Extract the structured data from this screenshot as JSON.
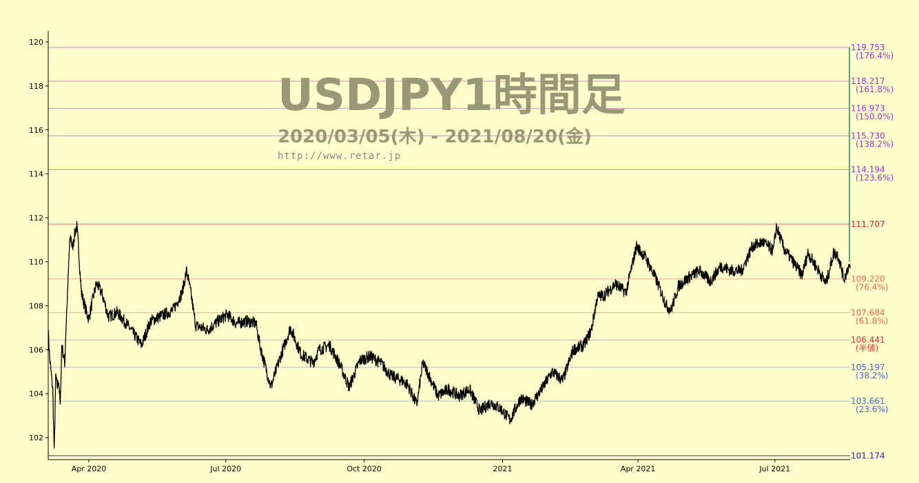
{
  "chart_data": {
    "type": "line",
    "title": "USDJPY1時間足",
    "subtitle": "2020/03/05(木) - 2021/08/20(金)",
    "url_text": "http://www.retar.jp",
    "xlabel": "",
    "ylabel": "",
    "ylim": [
      101.0,
      120.5
    ],
    "xlim": [
      "2020-03-05",
      "2021-08-20"
    ],
    "y_ticks": [
      102,
      104,
      106,
      108,
      110,
      112,
      114,
      116,
      118,
      120
    ],
    "x_ticks": [
      {
        "label": "Apr 2020",
        "date": "2020-04-01"
      },
      {
        "label": "Jul 2020",
        "date": "2020-07-01"
      },
      {
        "label": "Oct 2020",
        "date": "2020-10-01"
      },
      {
        "label": "2021",
        "date": "2021-01-01"
      },
      {
        "label": "Apr 2021",
        "date": "2021-04-01"
      },
      {
        "label": "Jul 2021",
        "date": "2021-07-01"
      }
    ],
    "series": [
      {
        "color": "#000000",
        "points": [
          [
            "2020-03-05",
            106.9
          ],
          [
            "2020-03-06",
            105.6
          ],
          [
            "2020-03-08",
            104.2
          ],
          [
            "2020-03-09",
            101.3
          ],
          [
            "2020-03-10",
            104.8
          ],
          [
            "2020-03-11",
            104.3
          ],
          [
            "2020-03-12",
            104.6
          ],
          [
            "2020-03-13",
            103.4
          ],
          [
            "2020-03-14",
            106.2
          ],
          [
            "2020-03-16",
            105.4
          ],
          [
            "2020-03-17",
            107.3
          ],
          [
            "2020-03-18",
            108.8
          ],
          [
            "2020-03-19",
            110.6
          ],
          [
            "2020-03-20",
            111.2
          ],
          [
            "2020-03-21",
            110.6
          ],
          [
            "2020-03-23",
            111.4
          ],
          [
            "2020-03-24",
            111.6
          ],
          [
            "2020-03-25",
            110.8
          ],
          [
            "2020-03-27",
            108.6
          ],
          [
            "2020-03-30",
            107.8
          ],
          [
            "2020-04-01",
            107.4
          ],
          [
            "2020-04-03",
            108.1
          ],
          [
            "2020-04-06",
            109.0
          ],
          [
            "2020-04-08",
            108.8
          ],
          [
            "2020-04-10",
            108.5
          ],
          [
            "2020-04-14",
            107.5
          ],
          [
            "2020-04-20",
            107.7
          ],
          [
            "2020-04-28",
            107.0
          ],
          [
            "2020-05-06",
            106.2
          ],
          [
            "2020-05-12",
            107.3
          ],
          [
            "2020-05-18",
            107.5
          ],
          [
            "2020-05-27",
            107.8
          ],
          [
            "2020-06-02",
            108.6
          ],
          [
            "2020-06-05",
            109.6
          ],
          [
            "2020-06-08",
            108.5
          ],
          [
            "2020-06-11",
            107.1
          ],
          [
            "2020-06-19",
            106.9
          ],
          [
            "2020-06-26",
            107.3
          ],
          [
            "2020-07-02",
            107.6
          ],
          [
            "2020-07-08",
            107.2
          ],
          [
            "2020-07-15",
            107.3
          ],
          [
            "2020-07-21",
            107.2
          ],
          [
            "2020-07-24",
            106.1
          ],
          [
            "2020-07-31",
            104.3
          ],
          [
            "2020-08-06",
            105.6
          ],
          [
            "2020-08-13",
            107.0
          ],
          [
            "2020-08-20",
            105.8
          ],
          [
            "2020-08-28",
            105.4
          ],
          [
            "2020-09-01",
            106.0
          ],
          [
            "2020-09-08",
            106.2
          ],
          [
            "2020-09-15",
            105.3
          ],
          [
            "2020-09-21",
            104.3
          ],
          [
            "2020-09-28",
            105.5
          ],
          [
            "2020-10-05",
            105.7
          ],
          [
            "2020-10-12",
            105.4
          ],
          [
            "2020-10-19",
            104.8
          ],
          [
            "2020-10-26",
            104.6
          ],
          [
            "2020-10-30",
            104.4
          ],
          [
            "2020-11-05",
            103.5
          ],
          [
            "2020-11-09",
            105.4
          ],
          [
            "2020-11-12",
            105.0
          ],
          [
            "2020-11-19",
            103.9
          ],
          [
            "2020-11-26",
            104.2
          ],
          [
            "2020-12-03",
            103.9
          ],
          [
            "2020-12-10",
            104.2
          ],
          [
            "2020-12-17",
            103.2
          ],
          [
            "2020-12-24",
            103.6
          ],
          [
            "2020-12-31",
            103.3
          ],
          [
            "2021-01-06",
            102.8
          ],
          [
            "2021-01-13",
            103.8
          ],
          [
            "2021-01-20",
            103.5
          ],
          [
            "2021-01-27",
            104.2
          ],
          [
            "2021-02-03",
            105.0
          ],
          [
            "2021-02-10",
            104.6
          ],
          [
            "2021-02-17",
            106.0
          ],
          [
            "2021-02-24",
            106.2
          ],
          [
            "2021-03-01",
            106.9
          ],
          [
            "2021-03-05",
            108.4
          ],
          [
            "2021-03-10",
            108.5
          ],
          [
            "2021-03-17",
            109.0
          ],
          [
            "2021-03-24",
            108.6
          ],
          [
            "2021-03-31",
            110.7
          ],
          [
            "2021-04-06",
            110.2
          ],
          [
            "2021-04-13",
            109.2
          ],
          [
            "2021-04-20",
            108.0
          ],
          [
            "2021-04-23",
            107.8
          ],
          [
            "2021-04-28",
            108.9
          ],
          [
            "2021-05-05",
            109.3
          ],
          [
            "2021-05-12",
            109.6
          ],
          [
            "2021-05-19",
            109.1
          ],
          [
            "2021-05-26",
            109.8
          ],
          [
            "2021-06-02",
            109.6
          ],
          [
            "2021-06-09",
            109.6
          ],
          [
            "2021-06-16",
            110.7
          ],
          [
            "2021-06-23",
            110.9
          ],
          [
            "2021-06-30",
            110.5
          ],
          [
            "2021-07-02",
            111.6
          ],
          [
            "2021-07-07",
            110.6
          ],
          [
            "2021-07-14",
            109.9
          ],
          [
            "2021-07-19",
            109.4
          ],
          [
            "2021-07-23",
            110.4
          ],
          [
            "2021-07-30",
            109.6
          ],
          [
            "2021-08-04",
            109.0
          ],
          [
            "2021-08-09",
            110.4
          ],
          [
            "2021-08-12",
            110.3
          ],
          [
            "2021-08-16",
            109.2
          ],
          [
            "2021-08-19",
            109.8
          ],
          [
            "2021-08-20",
            109.7
          ]
        ]
      }
    ],
    "levels": [
      {
        "value": 119.753,
        "label": "119.753",
        "pct": "(176.4%)",
        "line_color": "#dd88cc",
        "text_color": "#9933cc"
      },
      {
        "value": 118.217,
        "label": "118.217",
        "pct": "(161.8%)",
        "line_color": "#dd88cc",
        "text_color": "#9933cc"
      },
      {
        "value": 116.973,
        "label": "116.973",
        "pct": "(150.0%)",
        "line_color": "#dd88cc",
        "text_color": "#9933cc"
      },
      {
        "value": 115.73,
        "label": "115.730",
        "pct": "(138.2%)",
        "line_color": "#dd88cc",
        "text_color": "#9933cc"
      },
      {
        "value": 114.194,
        "label": "114.194",
        "pct": "(123.6%)",
        "line_color": "#dd88cc",
        "text_color": "#9933cc"
      },
      {
        "value": 111.707,
        "label": "111.707",
        "pct": "",
        "line_color": "#ee6666",
        "text_color": "#cc2222"
      },
      {
        "value": 109.22,
        "label": "109.220",
        "pct": "(76.4%)",
        "line_color": "#f5b090",
        "text_color": "#ee6644"
      },
      {
        "value": 107.684,
        "label": "107.684",
        "pct": "(61.8%)",
        "line_color": "#f5b090",
        "text_color": "#ee6644"
      },
      {
        "value": 106.441,
        "label": "106.441",
        "pct": "(半値)",
        "line_color": "#ddaaaa",
        "text_color": "#cc3333"
      },
      {
        "value": 105.197,
        "label": "105.197",
        "pct": "(38.2%)",
        "line_color": "#aabbdd",
        "text_color": "#4466cc"
      },
      {
        "value": 103.661,
        "label": "103.661",
        "pct": "(23.6%)",
        "line_color": "#aabbdd",
        "text_color": "#4466cc"
      },
      {
        "value": 101.174,
        "label": "101.174",
        "pct": "",
        "line_color": "#3333cc",
        "text_color": "#2222aa"
      }
    ],
    "grid": false,
    "legend": "none",
    "colors": {
      "background": "#ffffcc",
      "title": "#999977",
      "series": "#000000"
    }
  }
}
